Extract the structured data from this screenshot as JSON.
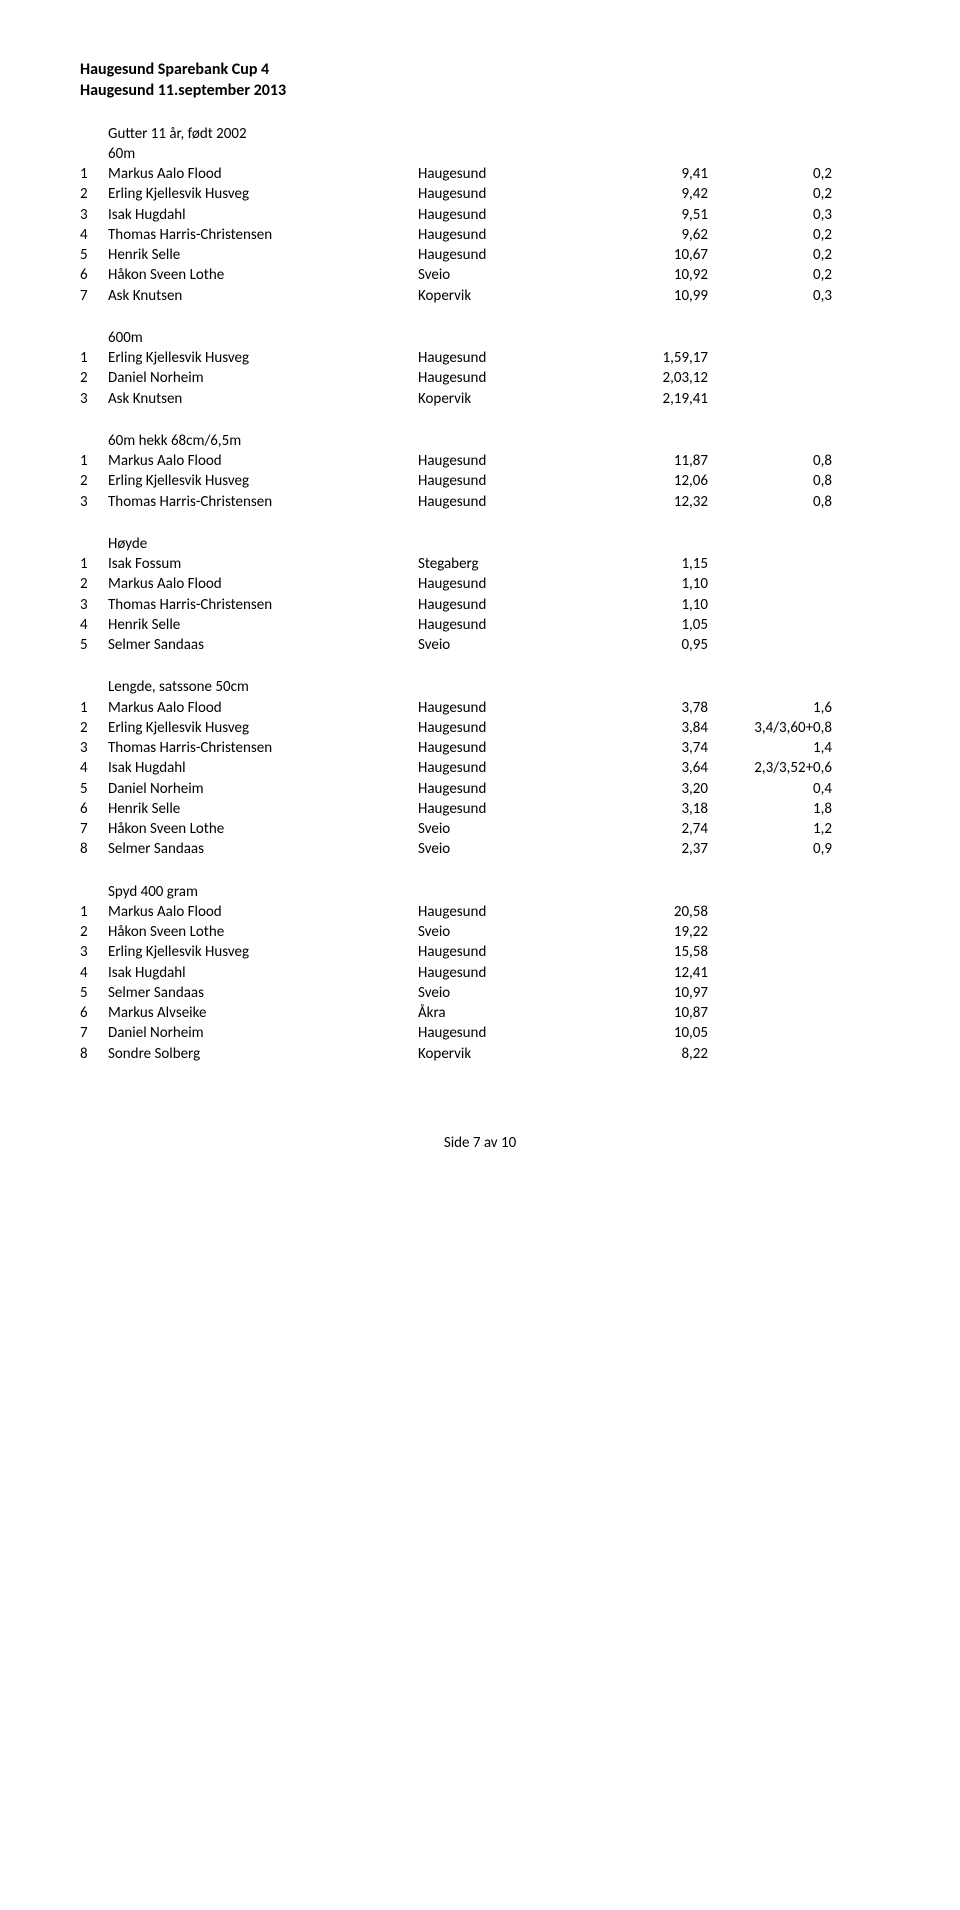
{
  "header": {
    "line1": "Haugesund Sparebank Cup 4",
    "line2": "Haugesund 11.september 2013"
  },
  "sections": [
    {
      "title_lines": [
        "Gutter 11 år, født 2002",
        "60m"
      ],
      "rows": [
        {
          "rank": "1",
          "name": "Markus Aalo Flood",
          "club": "Haugesund",
          "res": "9,41",
          "extra": "0,2"
        },
        {
          "rank": "2",
          "name": "Erling Kjellesvik Husveg",
          "club": "Haugesund",
          "res": "9,42",
          "extra": "0,2"
        },
        {
          "rank": "3",
          "name": "Isak Hugdahl",
          "club": "Haugesund",
          "res": "9,51",
          "extra": "0,3"
        },
        {
          "rank": "4",
          "name": "Thomas Harris-Christensen",
          "club": "Haugesund",
          "res": "9,62",
          "extra": "0,2"
        },
        {
          "rank": "5",
          "name": "Henrik Selle",
          "club": "Haugesund",
          "res": "10,67",
          "extra": "0,2"
        },
        {
          "rank": "6",
          "name": "Håkon Sveen Lothe",
          "club": "Sveio",
          "res": "10,92",
          "extra": "0,2"
        },
        {
          "rank": "7",
          "name": "Ask Knutsen",
          "club": "Kopervik",
          "res": "10,99",
          "extra": "0,3"
        }
      ]
    },
    {
      "title_lines": [
        "600m"
      ],
      "rows": [
        {
          "rank": "1",
          "name": "Erling Kjellesvik Husveg",
          "club": "Haugesund",
          "res": "1,59,17",
          "extra": ""
        },
        {
          "rank": "2",
          "name": "Daniel Norheim",
          "club": "Haugesund",
          "res": "2,03,12",
          "extra": ""
        },
        {
          "rank": "3",
          "name": "Ask Knutsen",
          "club": "Kopervik",
          "res": "2,19,41",
          "extra": ""
        }
      ]
    },
    {
      "title_lines": [
        "60m hekk 68cm/6,5m"
      ],
      "rows": [
        {
          "rank": "1",
          "name": "Markus Aalo Flood",
          "club": "Haugesund",
          "res": "11,87",
          "extra": "0,8"
        },
        {
          "rank": "2",
          "name": "Erling Kjellesvik Husveg",
          "club": "Haugesund",
          "res": "12,06",
          "extra": "0,8"
        },
        {
          "rank": "3",
          "name": "Thomas Harris-Christensen",
          "club": "Haugesund",
          "res": "12,32",
          "extra": "0,8"
        }
      ]
    },
    {
      "title_lines": [
        "Høyde"
      ],
      "rows": [
        {
          "rank": "1",
          "name": "Isak Fossum",
          "club": "Stegaberg",
          "res": "1,15",
          "extra": ""
        },
        {
          "rank": "2",
          "name": "Markus Aalo Flood",
          "club": "Haugesund",
          "res": "1,10",
          "extra": ""
        },
        {
          "rank": "3",
          "name": "Thomas Harris-Christensen",
          "club": "Haugesund",
          "res": "1,10",
          "extra": ""
        },
        {
          "rank": "4",
          "name": "Henrik Selle",
          "club": "Haugesund",
          "res": "1,05",
          "extra": ""
        },
        {
          "rank": "5",
          "name": "Selmer Sandaas",
          "club": "Sveio",
          "res": "0,95",
          "extra": ""
        }
      ]
    },
    {
      "title_lines": [
        "Lengde, satssone 50cm"
      ],
      "rows": [
        {
          "rank": "1",
          "name": "Markus Aalo Flood",
          "club": "Haugesund",
          "res": "3,78",
          "extra": "1,6"
        },
        {
          "rank": "2",
          "name": "Erling Kjellesvik Husveg",
          "club": "Haugesund",
          "res": "3,84",
          "extra": "3,4/3,60+0,8"
        },
        {
          "rank": "3",
          "name": "Thomas Harris-Christensen",
          "club": "Haugesund",
          "res": "3,74",
          "extra": "1,4"
        },
        {
          "rank": "4",
          "name": "Isak Hugdahl",
          "club": "Haugesund",
          "res": "3,64",
          "extra": "2,3/3,52+0,6"
        },
        {
          "rank": "5",
          "name": "Daniel Norheim",
          "club": "Haugesund",
          "res": "3,20",
          "extra": "0,4"
        },
        {
          "rank": "6",
          "name": "Henrik Selle",
          "club": "Haugesund",
          "res": "3,18",
          "extra": "1,8"
        },
        {
          "rank": "7",
          "name": "Håkon Sveen Lothe",
          "club": "Sveio",
          "res": "2,74",
          "extra": "1,2"
        },
        {
          "rank": "8",
          "name": "Selmer Sandaas",
          "club": "Sveio",
          "res": "2,37",
          "extra": "0,9"
        }
      ]
    },
    {
      "title_lines": [
        "Spyd 400 gram"
      ],
      "rows": [
        {
          "rank": "1",
          "name": "Markus Aalo Flood",
          "club": "Haugesund",
          "res": "20,58",
          "extra": ""
        },
        {
          "rank": "2",
          "name": "Håkon Sveen Lothe",
          "club": "Sveio",
          "res": "19,22",
          "extra": ""
        },
        {
          "rank": "3",
          "name": "Erling Kjellesvik Husveg",
          "club": "Haugesund",
          "res": "15,58",
          "extra": ""
        },
        {
          "rank": "4",
          "name": "Isak Hugdahl",
          "club": "Haugesund",
          "res": "12,41",
          "extra": ""
        },
        {
          "rank": "5",
          "name": "Selmer Sandaas",
          "club": "Sveio",
          "res": "10,97",
          "extra": ""
        },
        {
          "rank": "6",
          "name": "Markus Alvseike",
          "club": "Åkra",
          "res": "10,87",
          "extra": ""
        },
        {
          "rank": "7",
          "name": "Daniel Norheim",
          "club": "Haugesund",
          "res": "10,05",
          "extra": ""
        },
        {
          "rank": "8",
          "name": "Sondre Solberg",
          "club": "Kopervik",
          "res": "8,22",
          "extra": ""
        }
      ]
    }
  ],
  "footer": "Side 7 av 10"
}
